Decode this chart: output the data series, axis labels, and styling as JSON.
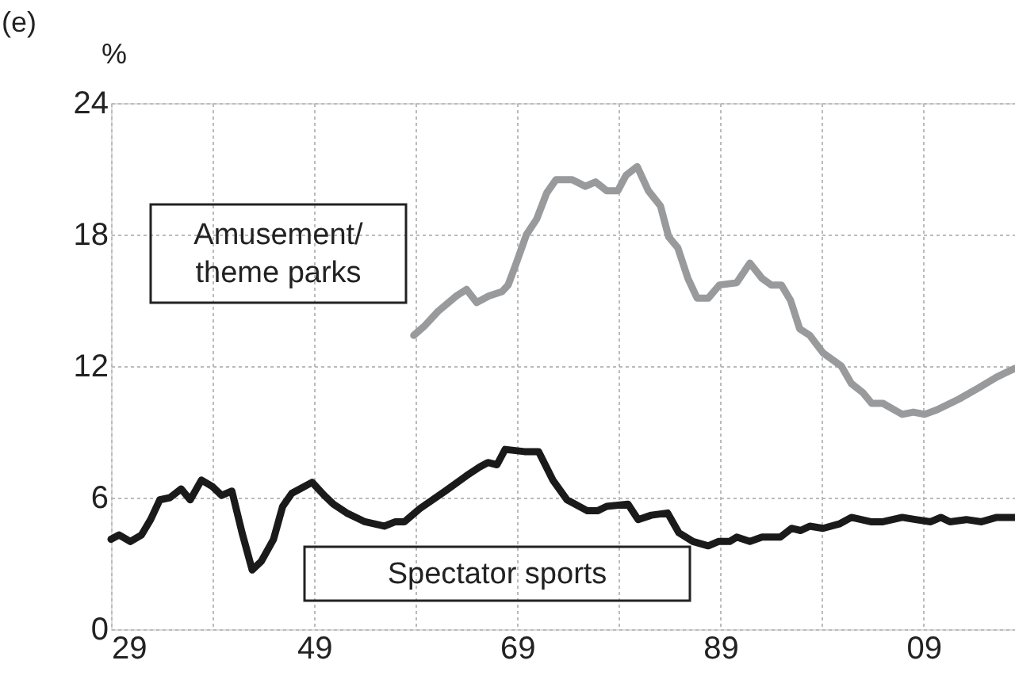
{
  "chart_data": {
    "type": "line",
    "title": "(e)",
    "ylabel": "%",
    "x": [
      1929,
      1929.8,
      1930.9,
      1932,
      1932.9,
      1933.8,
      1934.8,
      1935.9,
      1936.8,
      1937.9,
      1939,
      1939.9,
      1940.9,
      1941.9,
      1942.9,
      1943.8,
      1945,
      1945.9,
      1946.8,
      1948,
      1948.8,
      1950,
      1950.9,
      1952.2,
      1954,
      1955.9,
      1957,
      1957.9,
      1959.4,
      1961.9,
      1964,
      1965.3,
      1966.1,
      1967,
      1967.8,
      1969.7,
      1971.1,
      1972.5,
      1973.9,
      1975.9,
      1976.9,
      1977.8,
      1979.9,
      1980.9,
      1982.2,
      1983.8,
      1984.9,
      1986.3,
      1987.8,
      1988.8,
      1989.9,
      1990.6,
      1991.9,
      1993.1,
      1994.9,
      1996,
      1996.9,
      1997.8,
      1999.1,
      2000.7,
      2001.9,
      2003.8,
      2005,
      2006.9,
      2008.2,
      2009.7,
      2010.7,
      2011.6,
      2013.2,
      2014.7,
      2016.2,
      2018
    ],
    "series": [
      {
        "name": "Spectator sports",
        "color": "#1a1a1a",
        "values": [
          4.1,
          4.3,
          4.0,
          4.3,
          5.0,
          5.9,
          6.0,
          6.4,
          5.9,
          6.8,
          6.5,
          6.1,
          6.3,
          4.4,
          2.7,
          3.1,
          4.1,
          5.6,
          6.2,
          6.5,
          6.7,
          6.1,
          5.7,
          5.3,
          4.9,
          4.7,
          4.9,
          4.9,
          5.5,
          6.3,
          7.0,
          7.4,
          7.6,
          7.5,
          8.2,
          8.1,
          8.1,
          6.8,
          5.9,
          5.4,
          5.4,
          5.6,
          5.7,
          5.0,
          5.2,
          5.3,
          4.4,
          4.0,
          3.8,
          4.0,
          4.0,
          4.2,
          4.0,
          4.2,
          4.2,
          4.6,
          4.5,
          4.7,
          4.6,
          4.8,
          5.1,
          4.9,
          4.9,
          5.1,
          5.0,
          4.9,
          5.1,
          4.9,
          5.0,
          4.9,
          5.1,
          5.1
        ]
      },
      {
        "name": "Amusement/\ntheme parks",
        "color": "#999a9c",
        "x": [
          1958.8,
          1959.8,
          1961.2,
          1963,
          1964,
          1965,
          1966.2,
          1967.5,
          1968.1,
          1968.9,
          1969.9,
          1970.9,
          1971.9,
          1972.8,
          1974.4,
          1975.7,
          1976.7,
          1977.8,
          1978.9,
          1979.7,
          1980.8,
          1981.9,
          1983.1,
          1983.9,
          1984.8,
          1985.8,
          1986.7,
          1987.8,
          1988.9,
          1990.6,
          1991.9,
          1993.1,
          1994,
          1995,
          1995.9,
          1996.8,
          1997.8,
          1999.1,
          2000.9,
          2001.9,
          2003,
          2003.9,
          2005,
          2006.9,
          2008,
          2009.1,
          2010.3,
          2012.5,
          2014.4,
          2016.2,
          2018
        ],
        "values": [
          13.4,
          13.8,
          14.5,
          15.2,
          15.5,
          14.9,
          15.2,
          15.4,
          15.7,
          16.7,
          18.0,
          18.7,
          19.9,
          20.5,
          20.5,
          20.2,
          20.4,
          20.0,
          20.0,
          20.7,
          21.1,
          20.0,
          19.3,
          17.9,
          17.4,
          16.0,
          15.1,
          15.1,
          15.7,
          15.8,
          16.7,
          16.0,
          15.7,
          15.7,
          15.0,
          13.7,
          13.4,
          12.6,
          12.0,
          11.2,
          10.8,
          10.3,
          10.3,
          9.8,
          9.9,
          9.8,
          10.0,
          10.5,
          11.0,
          11.5,
          11.9
        ]
      }
    ],
    "xlim": [
      1929,
      2018
    ],
    "xticks": [
      {
        "value": 1929,
        "label": "29"
      },
      {
        "value": 1939,
        "label": null
      },
      {
        "value": 1949,
        "label": "49"
      },
      {
        "value": 1959,
        "label": null
      },
      {
        "value": 1969,
        "label": "69"
      },
      {
        "value": 1979,
        "label": null
      },
      {
        "value": 1989,
        "label": "89"
      },
      {
        "value": 1999,
        "label": null
      },
      {
        "value": 2009,
        "label": "09"
      }
    ],
    "ylim": [
      0,
      24
    ],
    "yticks": [
      0,
      6,
      12,
      18,
      24
    ],
    "grid": true,
    "legend": false,
    "marker": "none",
    "line_style": "solid"
  }
}
